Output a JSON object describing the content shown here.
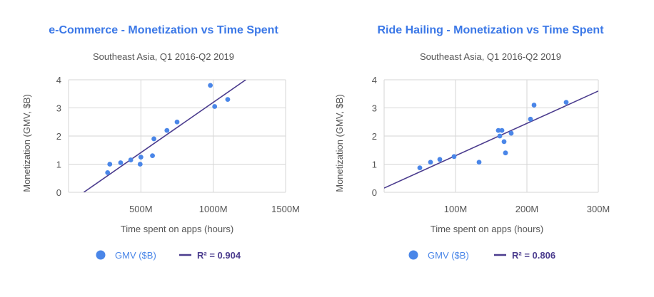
{
  "colors": {
    "title": "#3b78e7",
    "point": "#4a86e8",
    "fit_line": "#4b3c8e",
    "grid": "#d6d6d6",
    "text": "#555555"
  },
  "chart_data": [
    {
      "type": "scatter",
      "title": "e-Commerce - Monetization vs Time Spent",
      "subtitle": "Southeast Asia, Q1 2016-Q2 2019",
      "xlabel": "Time spent on apps (hours)",
      "ylabel": "Monetization (GMV, $B)",
      "xlim": [
        0,
        1500
      ],
      "ylim": [
        0,
        4
      ],
      "x_ticks": [
        500,
        1000,
        1500
      ],
      "x_tick_labels": [
        "500M",
        "1000M",
        "1500M"
      ],
      "y_ticks": [
        0,
        1,
        2,
        3,
        4
      ],
      "y_tick_labels": [
        "0",
        "1",
        "2",
        "3",
        "4"
      ],
      "grid": true,
      "series": [
        {
          "name": "GMV ($B)",
          "x": [
            270,
            285,
            360,
            430,
            495,
            500,
            580,
            590,
            680,
            750,
            980,
            1010,
            1100
          ],
          "y": [
            0.7,
            1.0,
            1.05,
            1.15,
            1.0,
            1.25,
            1.3,
            1.9,
            2.2,
            2.5,
            3.8,
            3.05,
            3.3
          ]
        }
      ],
      "fit_line": {
        "x": [
          105,
          1225
        ],
        "y": [
          0.0,
          4.0
        ]
      },
      "legend": {
        "series_label": "GMV ($B)",
        "fit_label": "R² = 0.904",
        "position": "bottom"
      }
    },
    {
      "type": "scatter",
      "title": "Ride Hailing - Monetization vs Time Spent",
      "subtitle": "Southeast Asia, Q1 2016-Q2 2019",
      "xlabel": "Time spent on apps (hours)",
      "ylabel": "Monetization (GMV, $B)",
      "xlim": [
        0,
        300
      ],
      "ylim": [
        0,
        4
      ],
      "x_ticks": [
        100,
        200,
        300
      ],
      "x_tick_labels": [
        "100M",
        "200M",
        "300M"
      ],
      "y_ticks": [
        0,
        1,
        2,
        3,
        4
      ],
      "y_tick_labels": [
        "0",
        "1",
        "2",
        "3",
        "4"
      ],
      "grid": true,
      "series": [
        {
          "name": "GMV ($B)",
          "x": [
            50,
            65,
            78,
            98,
            133,
            160,
            162,
            165,
            168,
            170,
            178,
            205,
            210,
            255
          ],
          "y": [
            0.87,
            1.07,
            1.17,
            1.27,
            1.07,
            2.2,
            2.0,
            2.2,
            1.8,
            1.4,
            2.1,
            2.6,
            3.1,
            3.2
          ]
        }
      ],
      "fit_line": {
        "x": [
          0,
          300
        ],
        "y": [
          0.15,
          3.6
        ]
      },
      "legend": {
        "series_label": "GMV ($B)",
        "fit_label": "R² = 0.806",
        "position": "bottom"
      }
    }
  ]
}
